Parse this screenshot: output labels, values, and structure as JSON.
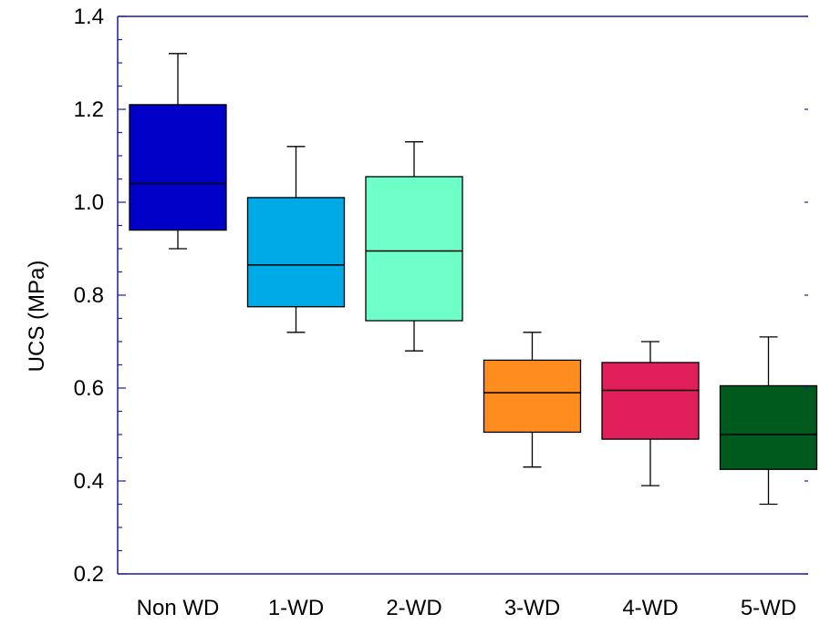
{
  "chart_data": {
    "type": "box",
    "title": "",
    "xlabel": "",
    "ylabel": "UCS (MPa)",
    "ylim": [
      0.2,
      1.4
    ],
    "yticks": [
      "0.2",
      "0.4",
      "0.6",
      "0.8",
      "1.0",
      "1.2",
      "1.4"
    ],
    "grid": false,
    "legend": "none",
    "axis_color": "#1a1aa8",
    "categories": [
      "Non WD",
      "1-WD",
      "2-WD",
      "3-WD",
      "4-WD",
      "5-WD"
    ],
    "boxes": [
      {
        "category": "Non WD",
        "min": 0.9,
        "q1": 0.94,
        "median": 1.04,
        "q3": 1.21,
        "max": 1.32,
        "color": "#0000c8"
      },
      {
        "category": "1-WD",
        "min": 0.72,
        "q1": 0.775,
        "median": 0.865,
        "q3": 1.01,
        "max": 1.12,
        "color": "#00aae6"
      },
      {
        "category": "2-WD",
        "min": 0.68,
        "q1": 0.745,
        "median": 0.895,
        "q3": 1.055,
        "max": 1.13,
        "color": "#6effc8"
      },
      {
        "category": "3-WD",
        "min": 0.43,
        "q1": 0.505,
        "median": 0.59,
        "q3": 0.66,
        "max": 0.72,
        "color": "#ff8c1e"
      },
      {
        "category": "4-WD",
        "min": 0.39,
        "q1": 0.49,
        "median": 0.595,
        "q3": 0.655,
        "max": 0.7,
        "color": "#e01e5a"
      },
      {
        "category": "5-WD",
        "min": 0.35,
        "q1": 0.425,
        "median": 0.5,
        "q3": 0.605,
        "max": 0.71,
        "color": "#005a1e"
      }
    ]
  }
}
